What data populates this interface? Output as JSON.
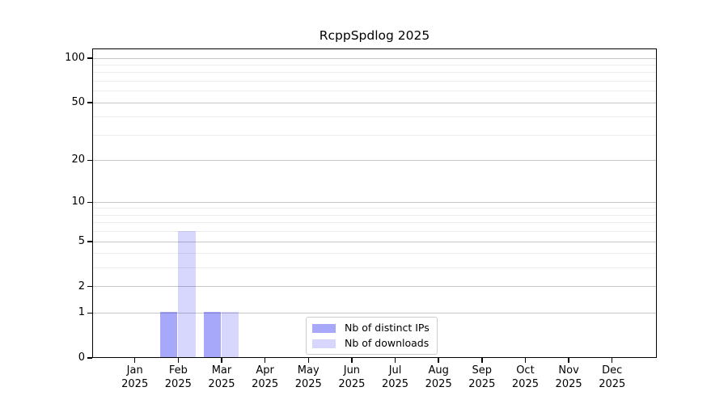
{
  "chart_data": {
    "type": "bar",
    "title": "RcppSpdlog 2025",
    "categories": [
      "Jan 2025",
      "Feb 2025",
      "Mar 2025",
      "Apr 2025",
      "May 2025",
      "Jun 2025",
      "Jul 2025",
      "Aug 2025",
      "Sep 2025",
      "Oct 2025",
      "Nov 2025",
      "Dec 2025"
    ],
    "series": [
      {
        "name": "Nb of distinct IPs",
        "color": "rgba(0,0,240,0.34)",
        "values": [
          0,
          1,
          1,
          0,
          0,
          0,
          0,
          0,
          0,
          0,
          0,
          0
        ]
      },
      {
        "name": "Nb of downloads",
        "color": "rgba(0,0,240,0.155)",
        "values": [
          0,
          6,
          1,
          0,
          0,
          0,
          0,
          0,
          0,
          0,
          0,
          0
        ]
      }
    ],
    "xlabel": "",
    "ylabel": "",
    "yscale": "log1p",
    "ylim": [
      0,
      115
    ],
    "yticks": [
      0,
      1,
      2,
      5,
      10,
      20,
      50,
      100
    ],
    "minor_gridlines": [
      3,
      4,
      6,
      7,
      8,
      9,
      30,
      40,
      60,
      70,
      80,
      90
    ],
    "grid": true,
    "legend_position": "lower center",
    "colors": {
      "major_grid": "#c6c6c6",
      "minor_grid": "#ececec",
      "axis": "#000000",
      "background": "#ffffff"
    }
  }
}
